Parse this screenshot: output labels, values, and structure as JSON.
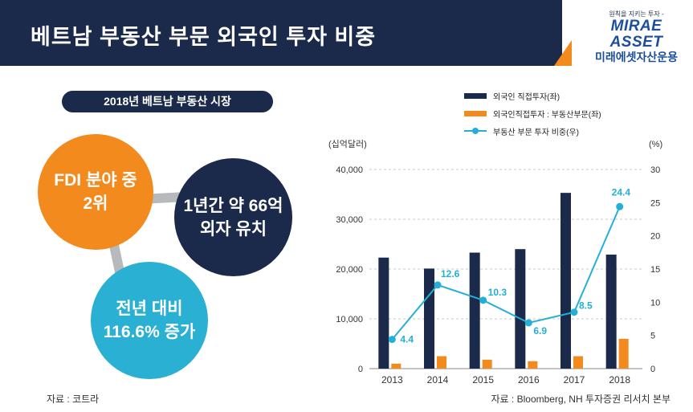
{
  "header": {
    "title": "베트남 부동산 부문 외국인 투자 비중"
  },
  "logo": {
    "tagline": "원칙을 지키는 투자 -",
    "brand": "MIRAE ASSET",
    "korean": "미래에셋자산운용"
  },
  "left_panel": {
    "pill": "2018년 베트남 부동산 시장",
    "circles": [
      {
        "text": "FDI 분야 중\n2위"
      },
      {
        "text": "1년간 약 66억\n외자 유치"
      },
      {
        "text": "전년 대비\n116.6% 증가"
      }
    ],
    "source": "자료 : 코트라"
  },
  "chart_data": {
    "type": "bar",
    "categories": [
      "2013",
      "2014",
      "2015",
      "2016",
      "2017",
      "2018"
    ],
    "series": [
      {
        "name": "외국인 직접투자(좌)",
        "type": "bar",
        "axis": "left",
        "color": "#1b2a4a",
        "values": [
          22300,
          20100,
          23300,
          24000,
          35300,
          22900
        ]
      },
      {
        "name": "외국인직접투자 : 부동산부문(좌)",
        "type": "bar",
        "axis": "left",
        "color": "#f28a1e",
        "values": [
          1000,
          2500,
          1800,
          1500,
          2500,
          6000
        ]
      },
      {
        "name": "부동산 부문 투자 비중(우)",
        "type": "line",
        "axis": "right",
        "color": "#25afd5",
        "values": [
          4.4,
          12.6,
          10.3,
          6.9,
          8.5,
          24.4
        ],
        "labels": [
          "4.4",
          "12.6",
          "10.3",
          "6.9",
          "8.5",
          "24.4"
        ]
      }
    ],
    "left_axis": {
      "label": "(십억달러)",
      "ylim": [
        0,
        40000
      ],
      "ticks": [
        0,
        10000,
        20000,
        30000,
        40000
      ],
      "tick_labels": [
        "0",
        "10,000",
        "20,000",
        "30,000",
        "40,000"
      ]
    },
    "right_axis": {
      "label": "(%)",
      "ylim": [
        0,
        30
      ],
      "ticks": [
        0,
        5,
        10,
        15,
        20,
        25,
        30
      ],
      "tick_labels": [
        "0",
        "5",
        "10",
        "15",
        "20",
        "25",
        "30"
      ]
    },
    "grid": true,
    "legend_position": "top",
    "source": "자료 : Bloomberg, NH 투자증권 리서치 본부"
  }
}
